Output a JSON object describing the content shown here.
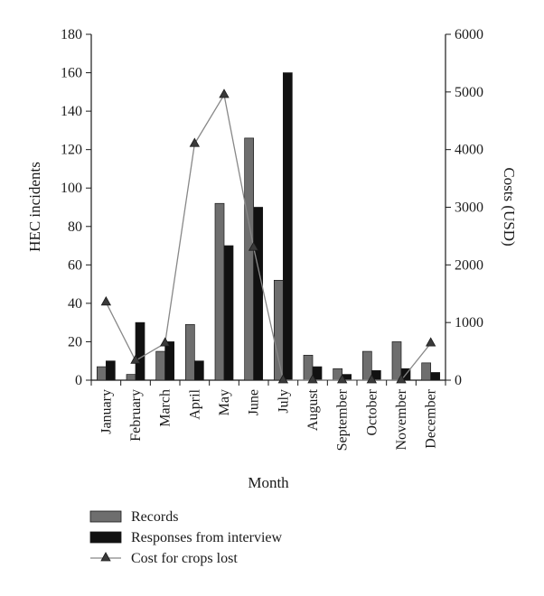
{
  "chart_data": {
    "type": "bar",
    "categories": [
      "January",
      "February",
      "March",
      "April",
      "May",
      "June",
      "July",
      "August",
      "September",
      "October",
      "November",
      "December"
    ],
    "series": [
      {
        "name": "Records",
        "kind": "bar",
        "axis": "left",
        "color": "#6e6e6e",
        "values": [
          7,
          3,
          15,
          29,
          92,
          126,
          52,
          13,
          6,
          15,
          20,
          9
        ]
      },
      {
        "name": "Responses from interview",
        "kind": "bar",
        "axis": "left",
        "color": "#111111",
        "values": [
          10,
          30,
          20,
          10,
          70,
          90,
          160,
          7,
          3,
          5,
          6,
          4
        ]
      },
      {
        "name": "Cost for crops lost",
        "kind": "line",
        "axis": "right",
        "color": "#888888",
        "marker": "triangle",
        "values": [
          1350,
          340,
          640,
          4100,
          4950,
          2300,
          0,
          0,
          0,
          0,
          0,
          640
        ]
      }
    ],
    "xlabel": "Month",
    "ylabel": "HEC incidents",
    "y2label": "Costs (USD)",
    "ylim": [
      0,
      180
    ],
    "y2lim": [
      0,
      6000
    ],
    "yticks": [
      "0",
      "20",
      "40",
      "60",
      "80",
      "100",
      "120",
      "140",
      "160",
      "180"
    ],
    "y2ticks": [
      "0",
      "1000",
      "2000",
      "3000",
      "4000",
      "5000",
      "6000"
    ],
    "legend_position": "bottom-left"
  }
}
